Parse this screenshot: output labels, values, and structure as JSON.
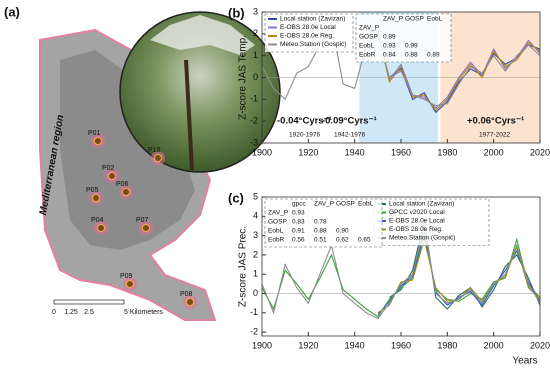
{
  "map": {
    "panel_label": "(a)",
    "region_label": "Mediterranean region",
    "sites": [
      "P01",
      "P10",
      "P02",
      "P06",
      "P05",
      "P04",
      "P07",
      "P09",
      "P08"
    ],
    "scale_labels": [
      "0",
      "1.25",
      "2.5",
      "5 Kilometers"
    ]
  },
  "chart_data": [
    {
      "type": "line",
      "panel_label": "(b)",
      "y_label": "Z-score JAS Temp.",
      "x": [
        1900,
        1905,
        1910,
        1915,
        1920,
        1925,
        1930,
        1935,
        1940,
        1945,
        1950,
        1955,
        1960,
        1965,
        1970,
        1975,
        1980,
        1985,
        1990,
        1995,
        2000,
        2005,
        2010,
        2015,
        2020
      ],
      "xlim": [
        1900,
        2020
      ],
      "xticks": [
        1900,
        1920,
        1940,
        1960,
        1980,
        2000,
        2020
      ],
      "ylim": [
        -3,
        3
      ],
      "yticks": [
        -3,
        -2,
        -1,
        0,
        1,
        2,
        3
      ],
      "series": [
        {
          "name": "Local station (Zavizan)",
          "color": "#3347b0",
          "values": [
            null,
            null,
            null,
            null,
            null,
            null,
            null,
            null,
            null,
            null,
            null,
            0.0,
            0.4,
            -1.0,
            -0.7,
            -1.6,
            -1.1,
            -0.2,
            0.4,
            0.1,
            1.1,
            0.6,
            0.9,
            1.5,
            1.3
          ]
        },
        {
          "name": "E-OBS 28.0e Local",
          "color": "#8a6fd6",
          "values": [
            null,
            null,
            null,
            null,
            null,
            null,
            null,
            null,
            null,
            null,
            2.1,
            -0.1,
            0.6,
            -0.8,
            -0.9,
            -1.4,
            -0.9,
            0.0,
            0.7,
            0.1,
            1.3,
            0.4,
            0.9,
            1.7,
            1.1
          ]
        },
        {
          "name": "E-OBS 28.0e Reg.",
          "color": "#b8860b",
          "values": [
            null,
            null,
            null,
            null,
            null,
            null,
            null,
            null,
            null,
            null,
            2.2,
            -0.2,
            0.5,
            -0.9,
            -0.8,
            -1.5,
            -1.0,
            -0.1,
            0.6,
            0.0,
            1.2,
            0.5,
            0.8,
            1.6,
            1.2
          ]
        },
        {
          "name": "Meteo.Station (Gospić)",
          "color": "#8c8c8c",
          "values": [
            0.5,
            -0.5,
            -1.0,
            0.2,
            0.5,
            1.5,
            2.5,
            -0.3,
            -0.5,
            1.5,
            2.0,
            0.0,
            0.3,
            -0.8,
            -1.0,
            -1.3,
            -1.2,
            -0.3,
            0.5,
            0.2,
            1.0,
            0.3,
            1.0,
            1.5,
            1.0
          ]
        }
      ],
      "shaded_spans": [
        {
          "x": [
            1942,
            1976
          ],
          "color": "#cfe8f7"
        },
        {
          "x": [
            1977,
            2022
          ],
          "color": "#fbe3cf"
        }
      ],
      "annotations": [
        {
          "text": "-0.04°Cyrs⁻¹",
          "period": "1920-1976",
          "color": "#222222"
        },
        {
          "text": "-0.09°Cyrs⁻¹",
          "period": "1942-1976",
          "color": "#2a9fd6"
        },
        {
          "text": "+0.06°Cyrs⁻¹",
          "period": "1977-2022",
          "color": "#b65a2c"
        }
      ],
      "correlation_table": {
        "columns": [
          "ZAV_P",
          "GOSP",
          "EobL"
        ],
        "rows": [
          {
            "label": "ZAV_P",
            "cells": []
          },
          {
            "label": "GOSP",
            "cells": [
              "0.89"
            ]
          },
          {
            "label": "EobL",
            "cells": [
              "0.93",
              "0.99"
            ]
          },
          {
            "label": "EobR",
            "cells": [
              "0.84",
              "0.88",
              "0.89"
            ]
          }
        ]
      }
    },
    {
      "type": "line",
      "panel_label": "(c)",
      "y_label": "Z-score JAS Prec.",
      "x_label": "Years",
      "x": [
        1900,
        1905,
        1910,
        1915,
        1920,
        1925,
        1930,
        1935,
        1940,
        1945,
        1950,
        1955,
        1960,
        1965,
        1970,
        1975,
        1980,
        1985,
        1990,
        1995,
        2000,
        2005,
        2010,
        2015,
        2020
      ],
      "xlim": [
        1900,
        2020
      ],
      "xticks": [
        1900,
        1920,
        1940,
        1960,
        1980,
        2000,
        2020
      ],
      "ylim": [
        -2.2,
        5
      ],
      "yticks": [
        -2,
        -1,
        0,
        1,
        2,
        3,
        4,
        5
      ],
      "series": [
        {
          "name": "Local station (Zavizan)",
          "color": "#1f6f5c",
          "values": [
            null,
            null,
            null,
            null,
            null,
            null,
            null,
            null,
            null,
            null,
            null,
            -0.2,
            0.2,
            1.2,
            3.8,
            -0.2,
            -0.8,
            -0.1,
            0.3,
            -0.7,
            0.2,
            1.4,
            2.0,
            0.8,
            -0.6
          ]
        },
        {
          "name": "GPCC v2020 Local",
          "color": "#3aa33a",
          "values": [
            0.3,
            -0.8,
            1.2,
            0.5,
            -0.3,
            0.8,
            2.0,
            0.2,
            -0.3,
            -0.8,
            -1.2,
            -0.3,
            0.3,
            0.8,
            3.0,
            0.2,
            -0.3,
            -0.4,
            0.0,
            -0.3,
            0.6,
            0.8,
            2.8,
            0.4,
            -0.2
          ]
        },
        {
          "name": "E-OBS 28.0e Local",
          "color": "#3b5bd6",
          "values": [
            null,
            null,
            null,
            null,
            null,
            null,
            null,
            null,
            null,
            null,
            -1.1,
            -0.4,
            0.4,
            0.9,
            3.2,
            0.1,
            -0.6,
            -0.2,
            0.1,
            -0.6,
            0.4,
            1.2,
            2.2,
            0.6,
            -0.4
          ]
        },
        {
          "name": "E-OBS 28.0e Reg.",
          "color": "#a08a1e",
          "values": [
            null,
            null,
            null,
            null,
            null,
            null,
            null,
            null,
            null,
            null,
            -1.0,
            -0.6,
            0.6,
            0.7,
            2.8,
            0.3,
            -0.4,
            -0.3,
            0.3,
            -0.4,
            0.5,
            0.9,
            2.4,
            0.3,
            -0.3
          ]
        },
        {
          "name": "Meteo.Station (Gospić)",
          "color": "#8c8c8c",
          "values": [
            0.5,
            -1.0,
            1.5,
            0.3,
            -0.5,
            1.0,
            2.5,
            0.0,
            -0.5,
            -1.0,
            -1.3,
            -0.5,
            0.5,
            1.0,
            3.5,
            0.0,
            -0.5,
            -0.3,
            0.2,
            -0.5,
            0.5,
            1.0,
            2.5,
            0.5,
            -0.5
          ]
        }
      ],
      "correlation_table": {
        "columns": [
          "gpcc",
          "ZAV_P",
          "GOSP",
          "EobL"
        ],
        "rows": [
          {
            "label": "ZAV_P",
            "cells": [
              "0.93"
            ]
          },
          {
            "label": "GOSP",
            "cells": [
              "0.83",
              "0.78"
            ]
          },
          {
            "label": "EobL",
            "cells": [
              "0.91",
              "0.88",
              "0.90"
            ]
          },
          {
            "label": "EobR",
            "cells": [
              "0.56",
              "0.51",
              "0.62",
              "0.65"
            ]
          }
        ]
      }
    }
  ]
}
